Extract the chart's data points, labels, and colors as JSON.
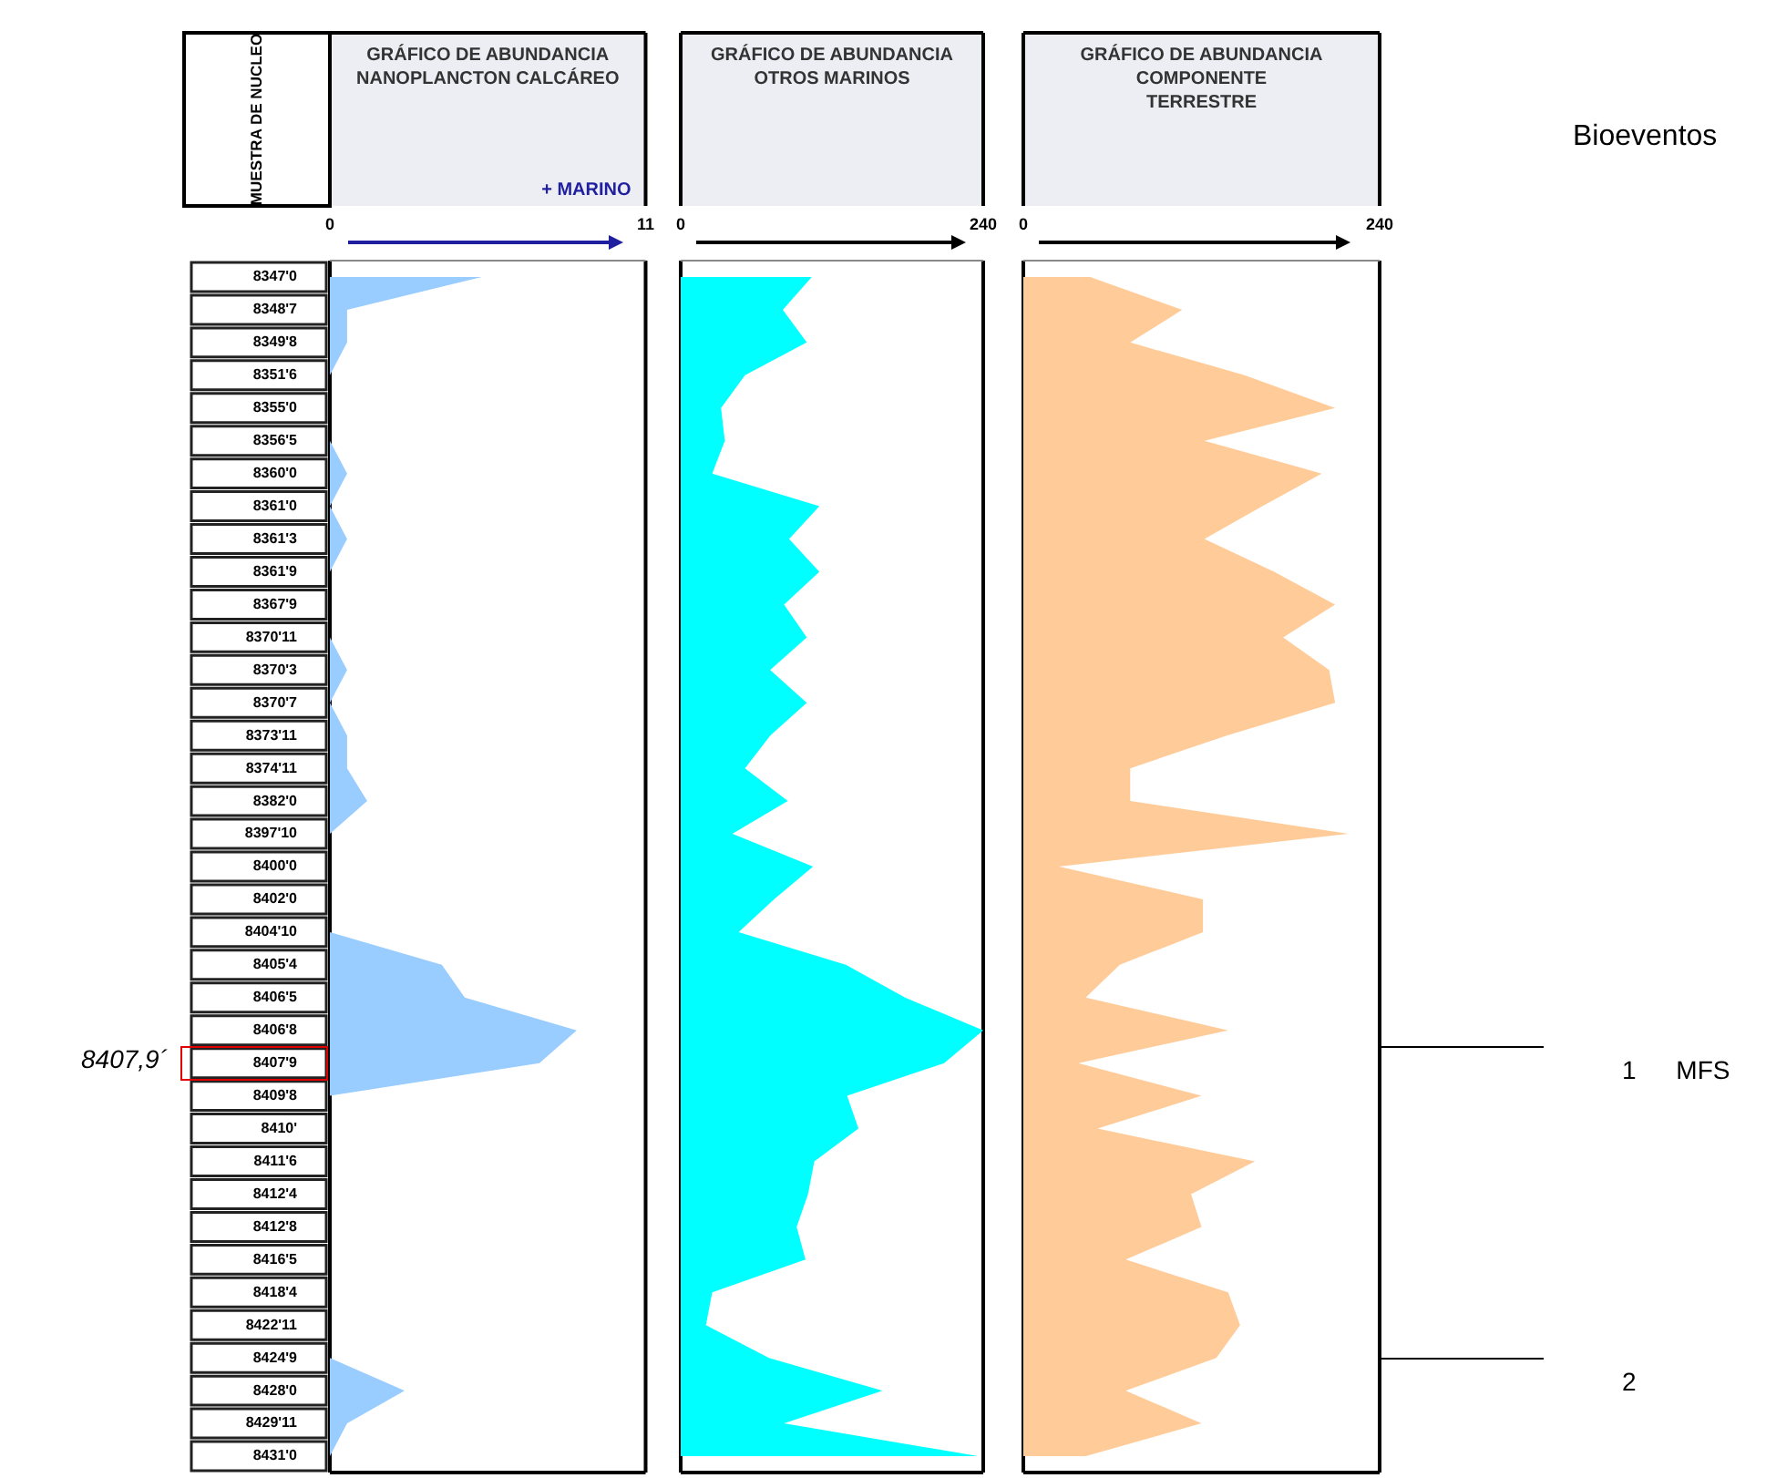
{
  "chart_data": [
    {
      "type": "area",
      "orientation": "horizontal",
      "title": "GRÁFICO DE ABUNDANCIA\nNANOPLANCTON CALCÁREO",
      "ylabel": "MUESTRA DE NUCLEO",
      "xlabel": "+ MARINO",
      "categories": [
        "8347'0",
        "8348'7",
        "8349'8",
        "8351'6",
        "8355'0",
        "8356'5",
        "8360'0",
        "8361'0",
        "8361'3",
        "8361'9",
        "8367'9",
        "8370'11",
        "8370'3",
        "8370'7",
        "8373'11",
        "8374'11",
        "8382'0",
        "8397'10",
        "8400'0",
        "8402'0",
        "8404'10",
        "8405'4",
        "8406'5",
        "8406'8",
        "8407'9",
        "8409'8",
        "8410'",
        "8411'6",
        "8412'4",
        "8412'8",
        "8416'5",
        "8418'4",
        "8422'11",
        "8424'9",
        "8428'0",
        "8429'11",
        "8431'0"
      ],
      "series": [
        {
          "color": "#99ccff",
          "values": [
            5.3,
            0.6,
            0.6,
            0,
            0,
            0,
            0.6,
            0,
            0.6,
            0,
            0,
            0,
            0.6,
            0,
            0.6,
            0.6,
            1.3,
            0,
            0,
            0,
            0,
            3.9,
            4.7,
            8.6,
            7.3,
            0,
            0,
            0,
            0,
            0,
            0,
            0,
            0,
            0,
            2.6,
            0.6,
            0
          ]
        }
      ],
      "xlim": [
        0,
        11
      ],
      "xticks": [
        0,
        11
      ],
      "annotations": [
        "8407,9´"
      ]
    },
    {
      "type": "area",
      "orientation": "horizontal",
      "title": "GRÁFICO DE ABUNDANCIA\nOTROS MARINOS",
      "series": [
        {
          "color": "#00ffff",
          "values": [
            104,
            81,
            100,
            51,
            32,
            35,
            25,
            110,
            86,
            110,
            82,
            100,
            71,
            100,
            71,
            51,
            85,
            41,
            105,
            74,
            46,
            131,
            178,
            240,
            209,
            132,
            141,
            106,
            101,
            92,
            99,
            25,
            20,
            70,
            160,
            82,
            236
          ]
        }
      ],
      "xlim": [
        0,
        240
      ],
      "xticks": [
        0,
        240
      ],
      "tick_labels": "x"
    },
    {
      "type": "area",
      "orientation": "horizontal",
      "title": "GRÁFICO DE ABUNDANCIA\nCOMPONENTE\nTERRESTRE",
      "series": [
        {
          "color": "#ffcc99",
          "values": [
            45,
            107,
            72,
            149,
            210,
            122,
            201,
            161,
            122,
            169,
            210,
            175,
            206,
            210,
            137,
            72,
            72,
            219,
            24,
            121,
            121,
            65,
            42,
            138,
            37,
            120,
            50,
            156,
            113,
            120,
            69,
            138,
            146,
            130,
            69,
            120,
            42
          ]
        }
      ],
      "xlim": [
        0,
        240
      ],
      "xticks": [
        0,
        240
      ],
      "tick_labels": "x",
      "annotations": [
        "Bioeventos",
        "1 MFS",
        "2"
      ]
    }
  ]
}
